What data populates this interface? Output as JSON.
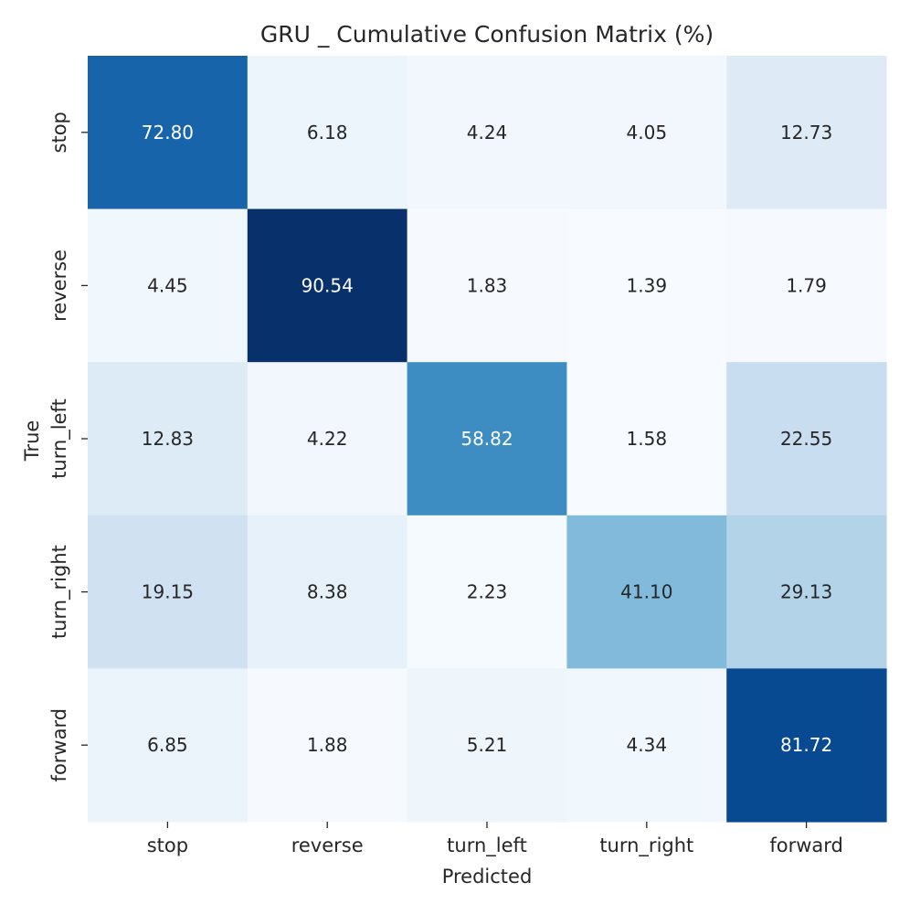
{
  "chart_data": {
    "type": "heatmap",
    "title": "GRU _ Cumulative Confusion Matrix (%)",
    "xlabel": "Predicted",
    "ylabel": "True",
    "x_categories": [
      "stop",
      "reverse",
      "turn_left",
      "turn_right",
      "forward"
    ],
    "y_categories": [
      "stop",
      "reverse",
      "turn_left",
      "turn_right",
      "forward"
    ],
    "values": [
      [
        72.8,
        6.18,
        4.24,
        4.05,
        12.73
      ],
      [
        4.45,
        90.54,
        1.83,
        1.39,
        1.79
      ],
      [
        12.83,
        4.22,
        58.82,
        1.58,
        22.55
      ],
      [
        19.15,
        8.38,
        2.23,
        41.1,
        29.13
      ],
      [
        6.85,
        1.88,
        5.21,
        4.34,
        81.72
      ]
    ],
    "value_labels": [
      [
        "72.80",
        "6.18",
        "4.24",
        "4.05",
        "12.73"
      ],
      [
        "4.45",
        "90.54",
        "1.83",
        "1.39",
        "1.79"
      ],
      [
        "12.83",
        "4.22",
        "58.82",
        "1.58",
        "22.55"
      ],
      [
        "19.15",
        "8.38",
        "2.23",
        "41.10",
        "29.13"
      ],
      [
        "6.85",
        "1.88",
        "5.21",
        "4.34",
        "81.72"
      ]
    ],
    "colormap": "Blues",
    "vmin": 1.39,
    "vmax": 90.54,
    "colorbar": false,
    "text_color_dark": "#262626",
    "text_color_light": "#ffffff"
  }
}
